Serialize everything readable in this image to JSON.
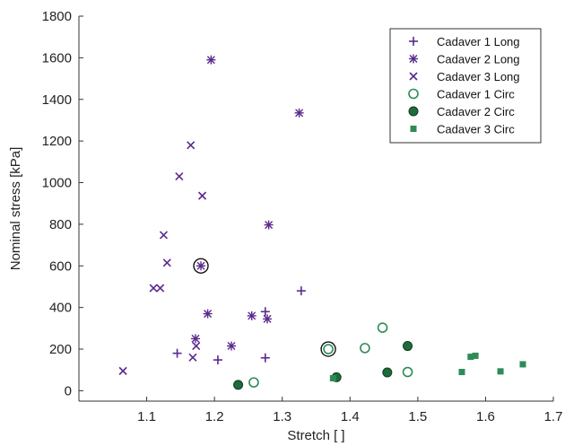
{
  "chart_data": {
    "type": "scatter",
    "xlabel": "Stretch [ ]",
    "ylabel": "Nominal stress [kPa]",
    "xlim": [
      1.0,
      1.7
    ],
    "ylim": [
      -50,
      1800
    ],
    "xticks": [
      1.1,
      1.2,
      1.3,
      1.4,
      1.5,
      1.6,
      1.7
    ],
    "yticks": [
      0,
      200,
      400,
      600,
      800,
      1000,
      1200,
      1400,
      1600,
      1800
    ],
    "legend_position": "top-right",
    "grid": false,
    "series": [
      {
        "name": "Cadaver 1 Long",
        "marker": "plus",
        "color": "#5b2a8e",
        "points": [
          [
            1.145,
            180
          ],
          [
            1.205,
            148
          ],
          [
            1.275,
            158
          ],
          [
            1.275,
            380
          ],
          [
            1.328,
            480
          ]
        ]
      },
      {
        "name": "Cadaver 2 Long",
        "marker": "asterisk",
        "color": "#5b2a8e",
        "points": [
          [
            1.195,
            1590
          ],
          [
            1.325,
            1335
          ],
          [
            1.28,
            797
          ],
          [
            1.18,
            600
          ],
          [
            1.19,
            370
          ],
          [
            1.255,
            360
          ],
          [
            1.278,
            345
          ],
          [
            1.225,
            215
          ],
          [
            1.172,
            250
          ]
        ]
      },
      {
        "name": "Cadaver 3 Long",
        "marker": "x",
        "color": "#5b2a8e",
        "points": [
          [
            1.065,
            95
          ],
          [
            1.11,
            493
          ],
          [
            1.12,
            493
          ],
          [
            1.13,
            615
          ],
          [
            1.125,
            748
          ],
          [
            1.148,
            1030
          ],
          [
            1.165,
            1180
          ],
          [
            1.182,
            937
          ],
          [
            1.168,
            160
          ],
          [
            1.173,
            215
          ]
        ]
      },
      {
        "name": "Cadaver 1 Circ",
        "marker": "open-circle",
        "color": "#2e8b57",
        "points": [
          [
            1.258,
            40
          ],
          [
            1.368,
            200
          ],
          [
            1.422,
            205
          ],
          [
            1.448,
            303
          ],
          [
            1.485,
            90
          ]
        ]
      },
      {
        "name": "Cadaver 2 Circ",
        "marker": "filled-circle",
        "color": "#1f6b3a",
        "points": [
          [
            1.235,
            28
          ],
          [
            1.38,
            65
          ],
          [
            1.455,
            88
          ],
          [
            1.485,
            215
          ]
        ]
      },
      {
        "name": "Cadaver 3 Circ",
        "marker": "square",
        "color": "#2e8b57",
        "points": [
          [
            1.375,
            60
          ],
          [
            1.565,
            90
          ],
          [
            1.578,
            163
          ],
          [
            1.585,
            168
          ],
          [
            1.622,
            93
          ],
          [
            1.655,
            127
          ]
        ]
      }
    ],
    "highlighted_points": [
      [
        1.18,
        600
      ],
      [
        1.368,
        200
      ]
    ]
  }
}
